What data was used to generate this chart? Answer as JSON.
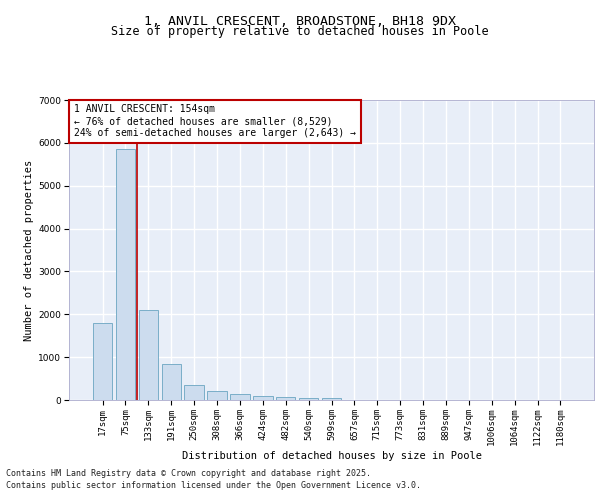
{
  "title_line1": "1, ANVIL CRESCENT, BROADSTONE, BH18 9DX",
  "title_line2": "Size of property relative to detached houses in Poole",
  "xlabel": "Distribution of detached houses by size in Poole",
  "ylabel": "Number of detached properties",
  "categories": [
    "17sqm",
    "75sqm",
    "133sqm",
    "191sqm",
    "250sqm",
    "308sqm",
    "366sqm",
    "424sqm",
    "482sqm",
    "540sqm",
    "599sqm",
    "657sqm",
    "715sqm",
    "773sqm",
    "831sqm",
    "889sqm",
    "947sqm",
    "1006sqm",
    "1064sqm",
    "1122sqm",
    "1180sqm"
  ],
  "values": [
    1800,
    5850,
    2100,
    830,
    340,
    210,
    135,
    90,
    70,
    55,
    45,
    0,
    0,
    0,
    0,
    0,
    0,
    0,
    0,
    0,
    0
  ],
  "bar_color": "#ccdcee",
  "bar_edge_color": "#7aaec8",
  "vline_x_index": 1.5,
  "annotation_title": "1 ANVIL CRESCENT: 154sqm",
  "annotation_line1": "← 76% of detached houses are smaller (8,529)",
  "annotation_line2": "24% of semi-detached houses are larger (2,643) →",
  "annotation_box_facecolor": "#ffffff",
  "annotation_box_edgecolor": "#bb0000",
  "vline_color": "#bb0000",
  "ylim": [
    0,
    7000
  ],
  "yticks": [
    0,
    1000,
    2000,
    3000,
    4000,
    5000,
    6000,
    7000
  ],
  "background_color": "#e8eef8",
  "grid_color": "#ffffff",
  "footer_line1": "Contains HM Land Registry data © Crown copyright and database right 2025.",
  "footer_line2": "Contains public sector information licensed under the Open Government Licence v3.0.",
  "title_fontsize": 9.5,
  "subtitle_fontsize": 8.5,
  "axis_label_fontsize": 7.5,
  "tick_fontsize": 6.5,
  "annotation_fontsize": 7,
  "footer_fontsize": 6
}
